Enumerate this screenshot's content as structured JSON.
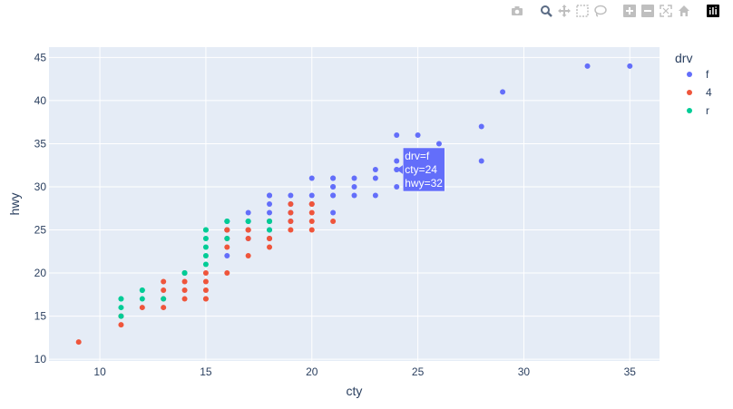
{
  "modebar": {
    "buttons": [
      "camera-icon",
      "zoom-icon",
      "pan-icon",
      "box-select-icon",
      "lasso-icon",
      "zoom-in-icon",
      "zoom-out-icon",
      "autoscale-icon",
      "reset-home-icon",
      "plotly-logo-icon"
    ]
  },
  "chart_data": {
    "type": "scatter",
    "xlabel": "cty",
    "ylabel": "hwy",
    "xlim": [
      7.6,
      36.4
    ],
    "ylim": [
      9.8,
      46.2
    ],
    "x_ticks": [
      10,
      15,
      20,
      25,
      30,
      35
    ],
    "y_ticks": [
      10,
      15,
      20,
      25,
      30,
      35,
      40,
      45
    ],
    "grid": true,
    "legend": {
      "title": "drv",
      "placement": "right"
    },
    "colors": {
      "f": "#636efa",
      "4": "#ef553b",
      "r": "#00cc96",
      "plot_bg": "#e5ecf6"
    },
    "series": [
      {
        "name": "f",
        "color": "#636efa",
        "points": [
          [
            18,
            29
          ],
          [
            21,
            29
          ],
          [
            20,
            31
          ],
          [
            21,
            30
          ],
          [
            16,
            26
          ],
          [
            18,
            26
          ],
          [
            18,
            27
          ],
          [
            18,
            29
          ],
          [
            19,
            29
          ],
          [
            19,
            28
          ],
          [
            17,
            27
          ],
          [
            17,
            25
          ],
          [
            17,
            24
          ],
          [
            16,
            22
          ],
          [
            18,
            28
          ],
          [
            21,
            31
          ],
          [
            21,
            30
          ],
          [
            22,
            31
          ],
          [
            22,
            30
          ],
          [
            23,
            32
          ],
          [
            24,
            36
          ],
          [
            24,
            32
          ],
          [
            25,
            36
          ],
          [
            26,
            35
          ],
          [
            24,
            33
          ],
          [
            21,
            29
          ],
          [
            23,
            29
          ],
          [
            24,
            30
          ],
          [
            28,
            33
          ],
          [
            28,
            37
          ],
          [
            29,
            41
          ],
          [
            33,
            44
          ],
          [
            35,
            44
          ],
          [
            20,
            28
          ],
          [
            19,
            27
          ],
          [
            22,
            29
          ],
          [
            21,
            27
          ],
          [
            17,
            26
          ],
          [
            18,
            25
          ],
          [
            21,
            31
          ],
          [
            23,
            31
          ],
          [
            20,
            29
          ],
          [
            18,
            24
          ],
          [
            19,
            26
          ],
          [
            16,
            25
          ],
          [
            24,
            32
          ]
        ]
      },
      {
        "name": "4",
        "color": "#ef553b",
        "points": [
          [
            9,
            12
          ],
          [
            11,
            15
          ],
          [
            11,
            14
          ],
          [
            12,
            16
          ],
          [
            13,
            16
          ],
          [
            13,
            17
          ],
          [
            13,
            18
          ],
          [
            13,
            19
          ],
          [
            14,
            17
          ],
          [
            14,
            18
          ],
          [
            14,
            19
          ],
          [
            14,
            20
          ],
          [
            15,
            17
          ],
          [
            15,
            18
          ],
          [
            15,
            19
          ],
          [
            15,
            20
          ],
          [
            16,
            20
          ],
          [
            16,
            23
          ],
          [
            16,
            24
          ],
          [
            16,
            25
          ],
          [
            17,
            22
          ],
          [
            17,
            24
          ],
          [
            17,
            25
          ],
          [
            18,
            23
          ],
          [
            18,
            24
          ],
          [
            19,
            25
          ],
          [
            19,
            26
          ],
          [
            19,
            27
          ],
          [
            20,
            25
          ],
          [
            20,
            26
          ],
          [
            20,
            27
          ],
          [
            20,
            28
          ],
          [
            21,
            26
          ],
          [
            18,
            26
          ],
          [
            19,
            28
          ],
          [
            15,
            17
          ],
          [
            16,
            25
          ],
          [
            17,
            25
          ],
          [
            18,
            24
          ],
          [
            20,
            28
          ]
        ]
      },
      {
        "name": "r",
        "color": "#00cc96",
        "points": [
          [
            11,
            15
          ],
          [
            11,
            16
          ],
          [
            11,
            17
          ],
          [
            12,
            17
          ],
          [
            12,
            18
          ],
          [
            13,
            17
          ],
          [
            14,
            20
          ],
          [
            15,
            21
          ],
          [
            15,
            22
          ],
          [
            15,
            23
          ],
          [
            15,
            24
          ],
          [
            15,
            25
          ],
          [
            16,
            24
          ],
          [
            16,
            26
          ],
          [
            17,
            26
          ],
          [
            18,
            25
          ],
          [
            18,
            26
          ],
          [
            11,
            17
          ],
          [
            12,
            18
          ],
          [
            14,
            20
          ],
          [
            15,
            25
          ],
          [
            16,
            26
          ],
          [
            17,
            26
          ],
          [
            18,
            26
          ]
        ]
      }
    ],
    "hover": {
      "lines": [
        "drv=f",
        "cty=24",
        "hwy=32"
      ],
      "x": 24,
      "y": 32,
      "series": "f"
    }
  }
}
